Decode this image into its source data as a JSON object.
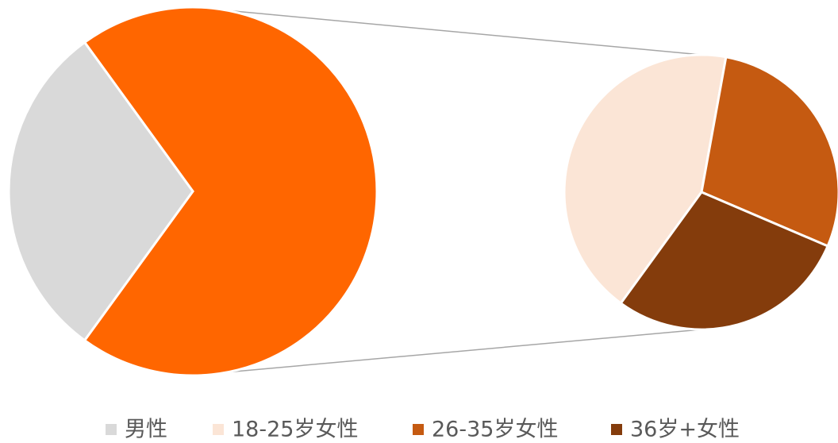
{
  "chart_data": {
    "type": "pie-of-pie",
    "categories": [
      "男性",
      "18-25岁女性",
      "26-35岁女性",
      "36岁+女性"
    ],
    "values": [
      30,
      30,
      20,
      20
    ],
    "colors": [
      "#d9d9d9",
      "#fbe5d6",
      "#c55a11",
      "#843c0c"
    ],
    "other_color": "#ff6600",
    "secondary_count": 3,
    "legend": "bottom"
  }
}
